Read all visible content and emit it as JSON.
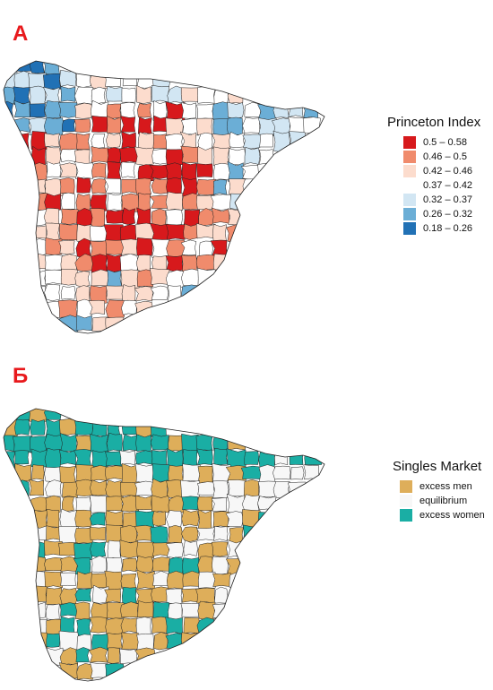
{
  "panel_a": {
    "letter": "А",
    "legend_title": "Princeton Index",
    "legend": [
      {
        "label": "0.5 – 0.58",
        "color": "#d7191c"
      },
      {
        "label": "0.46 – 0.5",
        "color": "#f08b6c"
      },
      {
        "label": "0.42 – 0.46",
        "color": "#fcdccd"
      },
      {
        "label": "0.37 – 0.42",
        "color": "#ffffff"
      },
      {
        "label": "0.32 – 0.37",
        "color": "#d2e6f3"
      },
      {
        "label": "0.26 – 0.32",
        "color": "#6baed6"
      },
      {
        "label": "0.18 – 0.26",
        "color": "#2171b5"
      }
    ]
  },
  "panel_b": {
    "letter": "Б",
    "legend_title": "Singles Market",
    "legend": [
      {
        "label": "excess men",
        "color": "#deae5a"
      },
      {
        "label": "equilibrium",
        "color": "#f7f7f7"
      },
      {
        "label": "excess women",
        "color": "#1aaea4"
      }
    ]
  }
}
